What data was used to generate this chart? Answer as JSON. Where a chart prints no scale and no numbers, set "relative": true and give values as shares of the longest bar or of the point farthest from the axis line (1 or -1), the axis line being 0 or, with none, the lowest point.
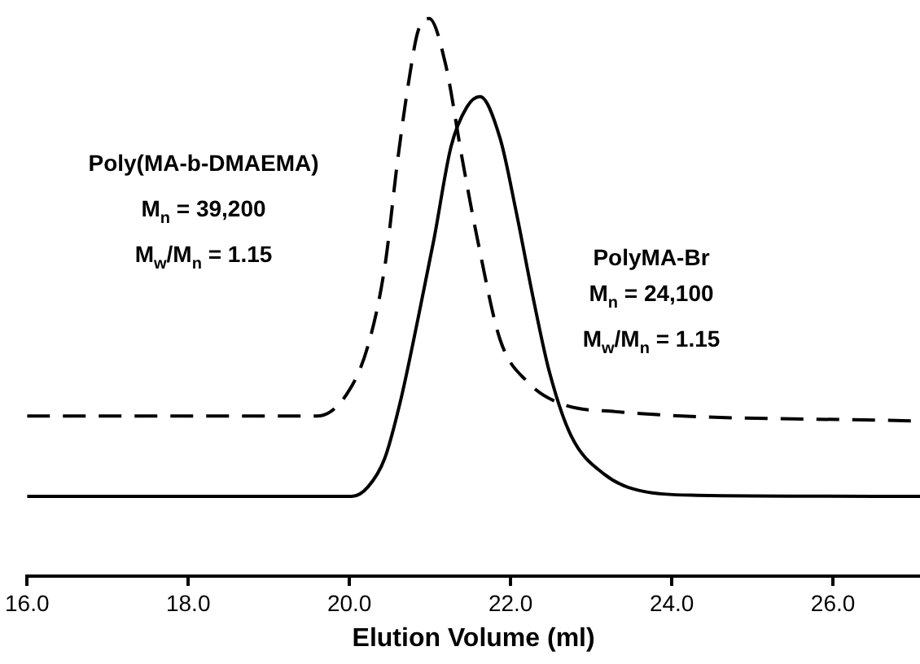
{
  "chart_data": {
    "type": "line",
    "xlabel": "Elution Volume (ml)",
    "relative": true,
    "tick_labels": "x",
    "grid": false,
    "legend": false,
    "marker": "none",
    "xlim": [
      16,
      27.08
    ],
    "xticks": [
      {
        "value": 16,
        "label": "16.0"
      },
      {
        "value": 18,
        "label": "18.0"
      },
      {
        "value": 20,
        "label": "20.0"
      },
      {
        "value": 22,
        "label": "22.0"
      },
      {
        "value": 24,
        "label": "24.0"
      },
      {
        "value": 26,
        "label": "26.0"
      }
    ],
    "series": [
      {
        "color": "#000000",
        "line_style": "dashed",
        "x": [
          16,
          19.6,
          19.97,
          20.23,
          20.44,
          20.6,
          20.74,
          20.85,
          20.99,
          21.19,
          21.4,
          21.6,
          21.87,
          22.22,
          22.63,
          23.3,
          27.08
        ],
        "values": [
          0.287,
          0.287,
          0.327,
          0.413,
          0.556,
          0.748,
          0.891,
          0.977,
          1,
          0.92,
          0.748,
          0.596,
          0.424,
          0.347,
          0.309,
          0.295,
          0.278
        ]
      },
      {
        "color": "#000000",
        "line_style": "solid",
        "x": [
          16,
          20.03,
          20.23,
          20.44,
          20.64,
          20.85,
          21.05,
          21.26,
          21.46,
          21.62,
          21.87,
          22.07,
          22.28,
          22.48,
          22.75,
          23.16,
          23.65,
          24.32,
          27.08
        ],
        "values": [
          0.143,
          0.143,
          0.16,
          0.212,
          0.318,
          0.461,
          0.605,
          0.77,
          0.842,
          0.86,
          0.785,
          0.653,
          0.499,
          0.367,
          0.252,
          0.183,
          0.152,
          0.145,
          0.143
        ]
      }
    ],
    "annotations": [
      "Poly(MA-b-DMAEMA)",
      "M$_{n}$ = 39,200",
      "M$_{w}$/M$_{n}$ = 1.15",
      "PolyMA-Br",
      "M$_{n}$ = 24,100",
      "M$_{w}$/M$_{n}$ = 1.15"
    ]
  }
}
